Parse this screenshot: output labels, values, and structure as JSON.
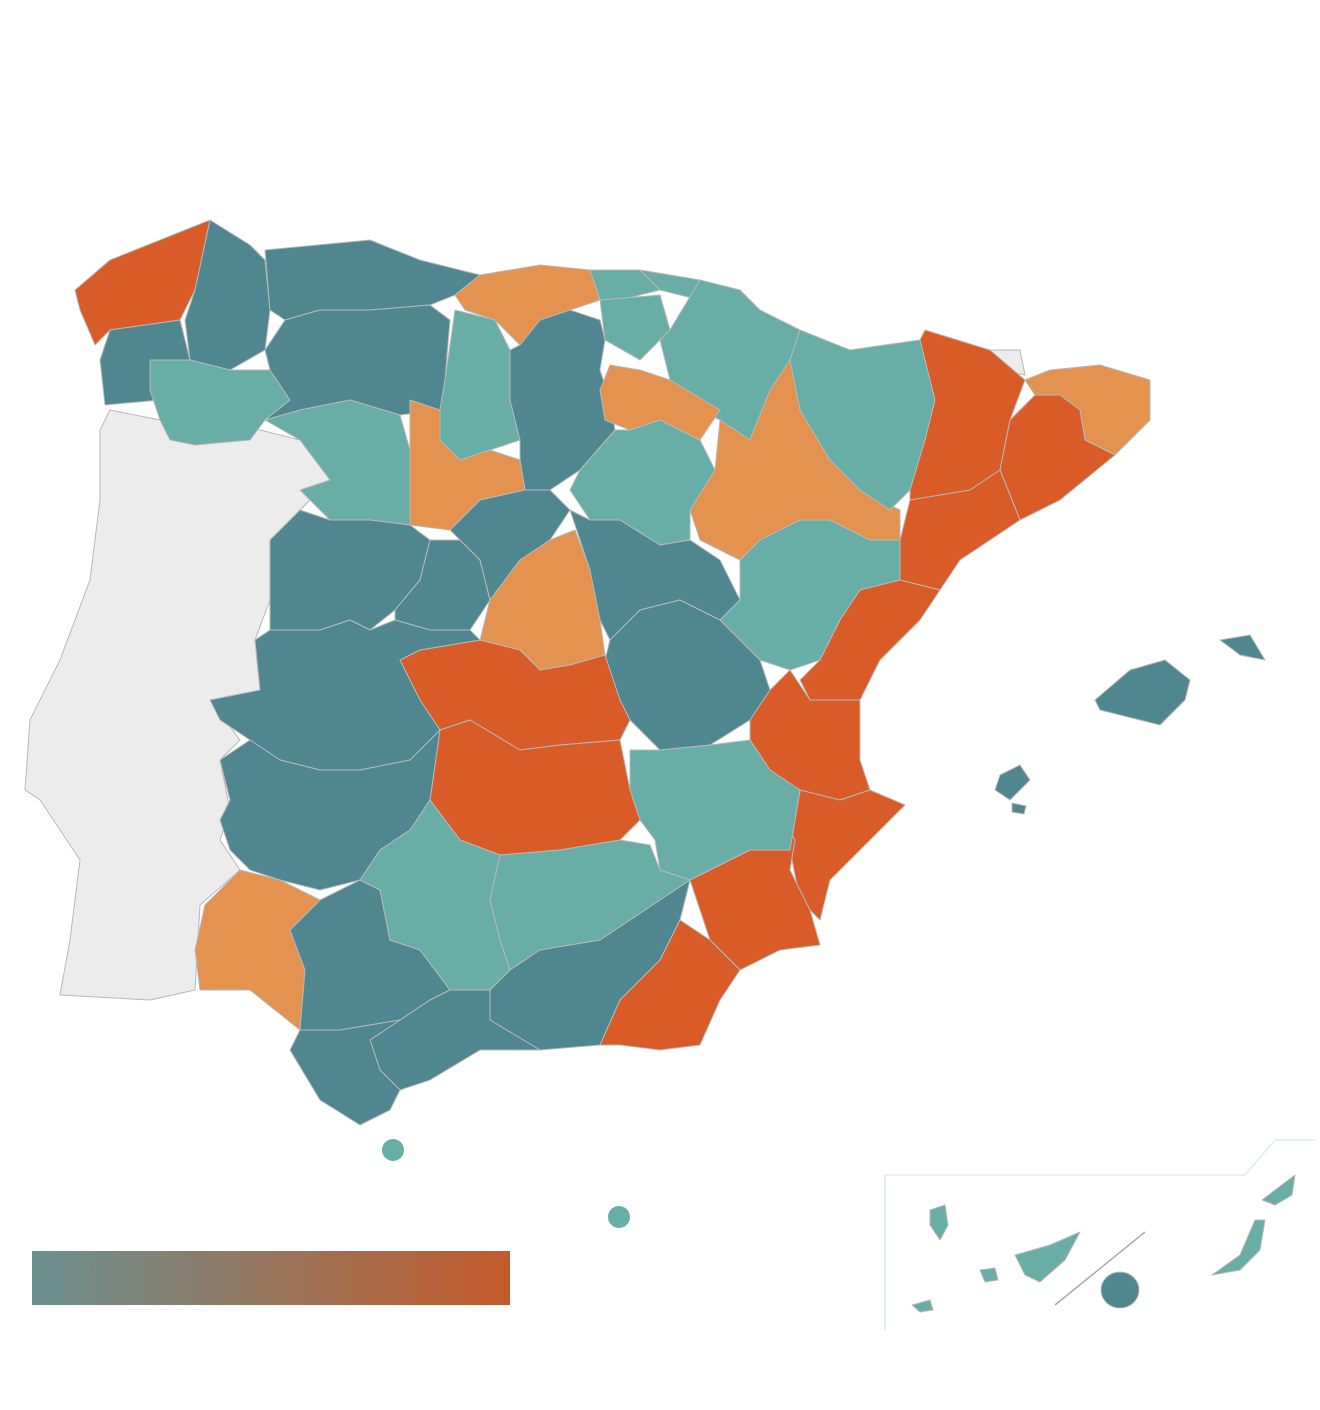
{
  "palette": {
    "dark": "#4f8690",
    "light": "#69aea6",
    "orange": "#e39250",
    "red": "#d95b27",
    "neutral": "#ececec"
  },
  "legend": {
    "colors": [
      "#6a9090",
      "#c45a2a"
    ]
  }
}
